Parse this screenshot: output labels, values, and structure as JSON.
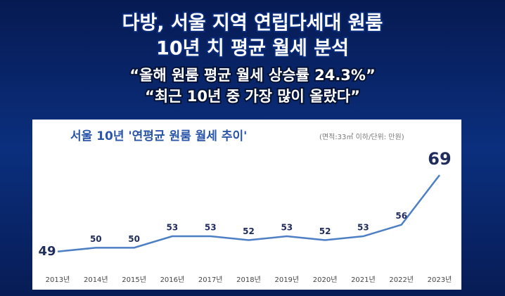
{
  "header": {
    "title": [
      "다방, 서울 지역 연립다세대 원룸",
      "10년 치 평균 월세 분석"
    ],
    "quotes": [
      "“올해 원룸 평균 월세 상승률 24.3%”",
      "“최근 10년 중 가장 많이 올랐다”"
    ]
  },
  "chart_data": {
    "type": "line",
    "title": "서울 10년 '연평균 원룸 월세 추이'",
    "subtitle": "(면적:33㎡ 이하/단위: 만원)",
    "categories": [
      "2013년",
      "2014년",
      "2015년",
      "2016년",
      "2017년",
      "2018년",
      "2019년",
      "2020년",
      "2021년",
      "2022년",
      "2023년"
    ],
    "values": [
      49,
      50,
      50,
      53,
      53,
      52,
      53,
      52,
      53,
      56,
      69
    ],
    "color": "#4d7fc4",
    "ylim": [
      44,
      78
    ]
  }
}
